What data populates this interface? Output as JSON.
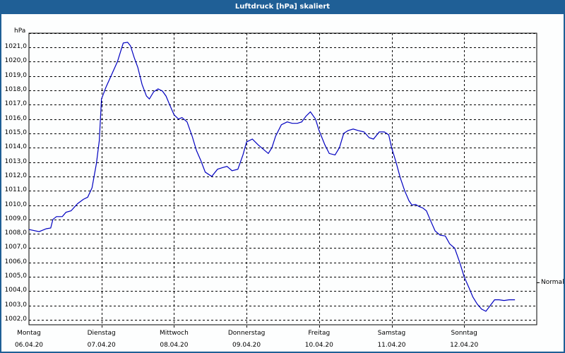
{
  "window": {
    "title": "Luftdruck [hPa] skaliert",
    "titlebar_color": "#1f5f96",
    "line_color": "#0000c0"
  },
  "axis": {
    "unit": "hPa",
    "y_ticks": [
      "1021,0",
      "1020,0",
      "1019,0",
      "1018,0",
      "1017,0",
      "1016,0",
      "1015,0",
      "1014,0",
      "1013,0",
      "1012,0",
      "1011,0",
      "1010,0",
      "1009,0",
      "1008,0",
      "1007,0",
      "1006,0",
      "1005,0",
      "1004,0",
      "1003,0",
      "1002,0"
    ],
    "x_ticks": [
      {
        "day": "Montag",
        "date": "06.04.20"
      },
      {
        "day": "Dienstag",
        "date": "07.04.20"
      },
      {
        "day": "Mittwoch",
        "date": "08.04.20"
      },
      {
        "day": "Donnerstag",
        "date": "09.04.20"
      },
      {
        "day": "Freitag",
        "date": "10.04.20"
      },
      {
        "day": "Samstag",
        "date": "11.04.20"
      },
      {
        "day": "Sonntag",
        "date": "12.04.20"
      }
    ],
    "reference_label": "Normal"
  },
  "chart_data": {
    "type": "line",
    "title": "Luftdruck [hPa] skaliert",
    "xlabel": "",
    "ylabel": "hPa",
    "ylim": [
      1001.6,
      1022.0
    ],
    "grid": true,
    "categories": [
      "Montag 06.04.20",
      "Dienstag 07.04.20",
      "Mittwoch 08.04.20",
      "Donnerstag 09.04.20",
      "Freitag 10.04.20",
      "Samstag 11.04.20",
      "Sonntag 12.04.20"
    ],
    "reference_line": {
      "label": "Normal",
      "value": 1004.6
    },
    "series": [
      {
        "name": "Luftdruck",
        "x_days": [
          0.0,
          0.14,
          0.24,
          0.3,
          0.33,
          0.38,
          0.46,
          0.51,
          0.58,
          0.67,
          0.75,
          0.81,
          0.87,
          0.93,
          0.97,
          1.0,
          1.06,
          1.14,
          1.22,
          1.3,
          1.36,
          1.4,
          1.45,
          1.5,
          1.56,
          1.62,
          1.66,
          1.72,
          1.78,
          1.84,
          1.89,
          1.94,
          2.0,
          2.06,
          2.11,
          2.18,
          2.25,
          2.31,
          2.37,
          2.43,
          2.52,
          2.6,
          2.66,
          2.73,
          2.8,
          2.88,
          2.95,
          3.0,
          3.08,
          3.16,
          3.23,
          3.3,
          3.35,
          3.4,
          3.48,
          3.56,
          3.63,
          3.7,
          3.76,
          3.82,
          3.88,
          3.95,
          4.0,
          4.08,
          4.14,
          4.22,
          4.28,
          4.34,
          4.4,
          4.47,
          4.54,
          4.62,
          4.69,
          4.75,
          4.83,
          4.9,
          4.96,
          5.0,
          5.06,
          5.12,
          5.18,
          5.24,
          5.28,
          5.33,
          5.38,
          5.43,
          5.48,
          5.53,
          5.6,
          5.67,
          5.74,
          5.8,
          5.87,
          5.94,
          6.0,
          6.07,
          6.12,
          6.18,
          6.24,
          6.3,
          6.36,
          6.42,
          6.48,
          6.55,
          6.62,
          6.66,
          6.7
        ],
        "values": [
          1008.3,
          1008.15,
          1008.35,
          1008.4,
          1009.0,
          1009.2,
          1009.2,
          1009.5,
          1009.6,
          1010.1,
          1010.4,
          1010.55,
          1011.2,
          1012.9,
          1014.5,
          1017.4,
          1018.2,
          1019.1,
          1020.0,
          1021.3,
          1021.35,
          1021.1,
          1020.3,
          1019.6,
          1018.4,
          1017.6,
          1017.4,
          1017.9,
          1018.1,
          1017.95,
          1017.6,
          1017.0,
          1016.3,
          1016.0,
          1016.1,
          1015.8,
          1014.8,
          1013.8,
          1013.1,
          1012.3,
          1012.0,
          1012.5,
          1012.6,
          1012.7,
          1012.4,
          1012.5,
          1013.5,
          1014.4,
          1014.6,
          1014.2,
          1013.9,
          1013.6,
          1014.0,
          1014.8,
          1015.6,
          1015.8,
          1015.7,
          1015.7,
          1015.8,
          1016.2,
          1016.5,
          1016.0,
          1015.2,
          1014.2,
          1013.6,
          1013.5,
          1014.0,
          1015.0,
          1015.2,
          1015.3,
          1015.2,
          1015.1,
          1014.7,
          1014.6,
          1015.1,
          1015.1,
          1014.9,
          1014.0,
          1013.0,
          1011.9,
          1011.0,
          1010.3,
          1010.0,
          1010.05,
          1009.9,
          1009.8,
          1009.6,
          1009.0,
          1008.2,
          1007.9,
          1007.85,
          1007.3,
          1007.0,
          1006.0,
          1005.0,
          1004.2,
          1003.6,
          1003.1,
          1002.75,
          1002.6,
          1003.0,
          1003.4,
          1003.4,
          1003.35,
          1003.4,
          1003.4,
          1003.4
        ]
      }
    ]
  }
}
